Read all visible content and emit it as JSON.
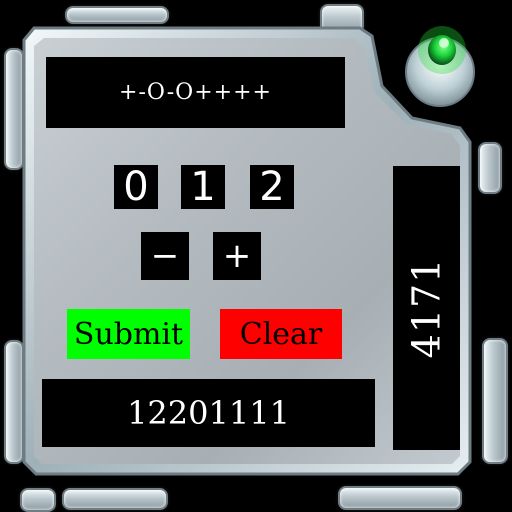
{
  "pattern_display": {
    "text": "+-O-O++++"
  },
  "digits": [
    "0",
    "1",
    "2"
  ],
  "buttons": {
    "minus": "−",
    "plus": "+",
    "submit": "Submit",
    "clear": "Clear"
  },
  "result_display": {
    "text": "12201111"
  },
  "side_display": {
    "text": "4171"
  },
  "colors": {
    "submit": "#00ff00",
    "clear": "#ff0000",
    "light": "#22dd33"
  }
}
